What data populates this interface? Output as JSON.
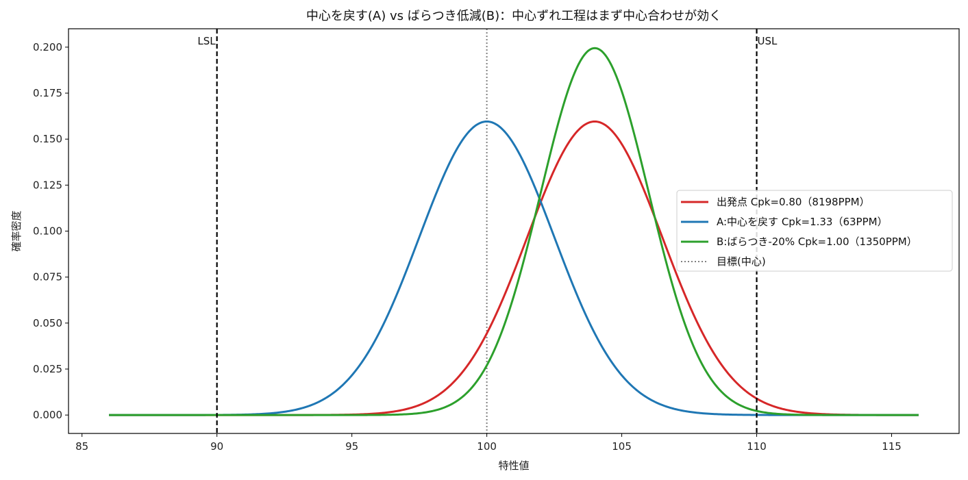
{
  "chart_data": {
    "type": "line",
    "title": "中心を戻す(A) vs ばらつき低減(B)：中心ずれ工程はまず中心合わせが効く",
    "xlabel": "特性値",
    "ylabel": "確率密度",
    "xlim": [
      84.5,
      117.5
    ],
    "ylim": [
      -0.01,
      0.21
    ],
    "x_ticks": [
      85,
      90,
      95,
      100,
      105,
      110,
      115
    ],
    "y_ticks": [
      0.0,
      0.025,
      0.05,
      0.075,
      0.1,
      0.125,
      0.15,
      0.175,
      0.2
    ],
    "x_tick_labels": [
      "85",
      "90",
      "95",
      "100",
      "105",
      "110",
      "115"
    ],
    "y_tick_labels": [
      "0.000",
      "0.025",
      "0.050",
      "0.075",
      "0.100",
      "0.125",
      "0.150",
      "0.175",
      "0.200"
    ],
    "x_range": [
      86,
      116
    ],
    "series": [
      {
        "name": "出発点 Cpk=0.80（8198PPM）",
        "color": "#d62728",
        "mean": 104,
        "sd": 2.5
      },
      {
        "name": "A:中心を戻す Cpk=1.33（63PPM）",
        "color": "#1f77b4",
        "mean": 100,
        "sd": 2.5
      },
      {
        "name": "B:ばらつき-20% Cpk=1.00（1350PPM）",
        "color": "#2ca02c",
        "mean": 104,
        "sd": 2.0
      }
    ],
    "reference_lines": [
      {
        "name": "目標(中心)",
        "x": 100,
        "color": "#808080",
        "style": "dotted",
        "in_legend": true
      },
      {
        "label": "LSL",
        "x": 90,
        "color": "#000000",
        "style": "dashed",
        "in_legend": false
      },
      {
        "label": "USL",
        "x": 110,
        "color": "#000000",
        "style": "dashed",
        "in_legend": false
      }
    ],
    "legend_position": "center-right",
    "grid": false
  }
}
